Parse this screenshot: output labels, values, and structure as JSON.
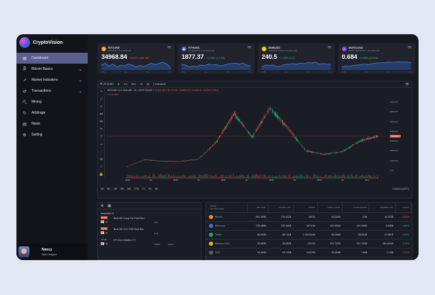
{
  "app": {
    "brand": "CryptoVision"
  },
  "colors": {
    "accent": "#5b5f8f",
    "up": "#2bbf8a",
    "down": "#e8535d",
    "sidebar": "#12141a"
  },
  "sidebar": {
    "items": [
      {
        "label": "Dashboard",
        "icon": "dashboard-icon",
        "active": true
      },
      {
        "label": "Bitcoin Basics",
        "icon": "bitcoin-icon",
        "expandable": true
      },
      {
        "label": "Market Indicators",
        "icon": "trend-icon",
        "expandable": true
      },
      {
        "label": "Transactions",
        "icon": "exchange-icon",
        "expandable": true
      },
      {
        "label": "Mining",
        "icon": "pickaxe-icon"
      },
      {
        "label": "Arbitrage",
        "icon": "arbitrage-icon"
      },
      {
        "label": "News",
        "icon": "news-icon"
      },
      {
        "label": "Setting",
        "icon": "gear-icon"
      }
    ]
  },
  "user": {
    "name": "Nancy",
    "role": "Web Designer"
  },
  "tickers": [
    {
      "symbol": "BTCUSD",
      "name": "BITCOIN / U.S. DOLLAR",
      "price": "34968.84",
      "change": "-0.52% (183.58)",
      "direction": "down",
      "color": "#f2931a",
      "glyph": "₿",
      "axis": [
        "2023",
        "Apr",
        "Jul",
        "Oct"
      ]
    },
    {
      "symbol": "ETHUSD",
      "name": "ETHEREUM / U.S. DOLLAR",
      "price": "1877.37",
      "change": "+1.08% (19.99)",
      "direction": "up",
      "color": "#5a6ed8",
      "glyph": "◆",
      "axis": [
        "2023",
        "Apr",
        "Jul",
        "Oct"
      ]
    },
    {
      "symbol": "BNBUSD",
      "name": "BINANCE COIN / US DOLLAR",
      "price": "240.5",
      "change": "+1.35% (3.2)",
      "direction": "up",
      "color": "#f0b90b",
      "glyph": "◈",
      "axis": [
        "2023",
        "Apr",
        "Jul",
        "Oct"
      ]
    },
    {
      "symbol": "MATICUSD",
      "name": "MATIC NETWORK / US DOLLAR",
      "price": "0.684",
      "change": "+0.88% (0.006)",
      "direction": "up",
      "color": "#8247e5",
      "glyph": "∞",
      "axis": [
        "2023",
        "Apr",
        "Jul",
        "Oct"
      ]
    }
  ],
  "tv_badge": "TV",
  "chart_toolbar": {
    "symbol": "BTCUSD",
    "interval": "1D",
    "indicators": "Indicators",
    "items": [
      "1m",
      "30m",
      "1h"
    ]
  },
  "chart_legend": {
    "title": "BITCOIN / U.S. DOLLAR · 1D · CRYPTOCAP",
    "ohlc": "O 35,151.36  H 35,279.96  L 34,860.01  C 34,968.84  -183.58 (-0.52%)",
    "vol_label": "Vol",
    "vol_value": "15.308K"
  },
  "chart_data": {
    "type": "line",
    "title": "BTCUSD · 1D · CRYPTOCAP",
    "x": [
      "2019-01",
      "2019-07",
      "2020-01",
      "2020-07",
      "2020-10",
      "2021-01",
      "2021-04",
      "2021-07",
      "2021-11",
      "2022-01",
      "2022-06",
      "2022-11",
      "2023-01",
      "2023-07",
      "2023-11"
    ],
    "series": [
      {
        "values": [
          3800,
          11000,
          9300,
          9200,
          11500,
          29000,
          58000,
          34000,
          64000,
          43000,
          20000,
          16500,
          19000,
          30000,
          34968
        ]
      }
    ],
    "ylim": [
      0,
      70000
    ],
    "yticks": [
      "70000.00",
      "60000.00",
      "50000.00",
      "40000.00",
      "30000.00",
      "20000.00",
      "10000.00",
      "0.00"
    ],
    "xticks": [
      "2019",
      "Jul",
      "2020",
      "Jul",
      "2021",
      "Jul",
      "2022",
      "Jul",
      "2023",
      "Jul",
      "Nov"
    ],
    "current_price": "34968.84",
    "grid": false
  },
  "timeframes": [
    "1D",
    "5D",
    "1M",
    "3M",
    "6M",
    "YTD",
    "1Y",
    "5Y",
    "All"
  ],
  "clock": "14:18:13 (UTC)",
  "calendar": {
    "date": "November 8",
    "events": [
      {
        "time": "07:30",
        "importance": "all",
        "title": "Jibun BK Comp Op Final Nov",
        "values": [
          "52.5",
          ""
        ],
        "highlight": true
      },
      {
        "time": "07:30",
        "importance": "all",
        "title": "Jibun BK SVC PMI Final Nov",
        "values": [
          "51.8",
          ""
        ],
        "highlight": true
      },
      {
        "time": "07:30",
        "importance": "all",
        "title": "CPI Core Inflation YY",
        "values": [
          "0.58%",
          "0.63%"
        ],
        "highlight": false
      }
    ]
  },
  "screener": {
    "columns": [
      "NAME\n857 MATCHES",
      "MKT CAP",
      "FD MKT CAP",
      "PRICE",
      "AVAIL COINS",
      "TOTAL COINS",
      "TRADED VOL",
      "CHG%"
    ],
    "rows": [
      {
        "name": "Bitcoin",
        "color": "#f2931a",
        "mkt_cap": "681.189B",
        "fd_mkt_cap": "733.312B",
        "price": "34972",
        "avail": "19.534M",
        "total": "21M",
        "vol": "10.332B",
        "chg": "-0.64%",
        "dir": "neg"
      },
      {
        "name": "Ethereum",
        "color": "#5a6ed8",
        "mkt_cap": "225.469B",
        "fd_mkt_cap": "225.469B",
        "price": "1874.56",
        "avail": "120.269M",
        "total": "120.269M",
        "vol": "6.586B",
        "chg": "0.65%",
        "dir": "pos"
      },
      {
        "name": "Tether",
        "color": "#26a17b",
        "mkt_cap": "86.466B",
        "fd_mkt_cap": "88.721B",
        "price": "1.00211009",
        "avail": "86.368B",
        "total": "88.624B",
        "vol": "22.961B",
        "chg": "0.00%",
        "dir": "pos"
      },
      {
        "name": "Binance Coin",
        "color": "#f0b90b",
        "mkt_cap": "36.383B",
        "fd_mkt_cap": "36.383B",
        "price": "240.54",
        "avail": "151.732M",
        "total": "151.732M",
        "vol": "254.661M",
        "chg": "1.31%",
        "dir": "pos"
      },
      {
        "name": "XRP",
        "color": "#5c6470",
        "mkt_cap": "34.169B",
        "fd_mkt_cap": "63.703B",
        "price": "0.63705",
        "avail": "53.618B",
        "total": "100B",
        "vol": "1.43B",
        "chg": "-1.21%",
        "dir": "neg"
      }
    ]
  }
}
